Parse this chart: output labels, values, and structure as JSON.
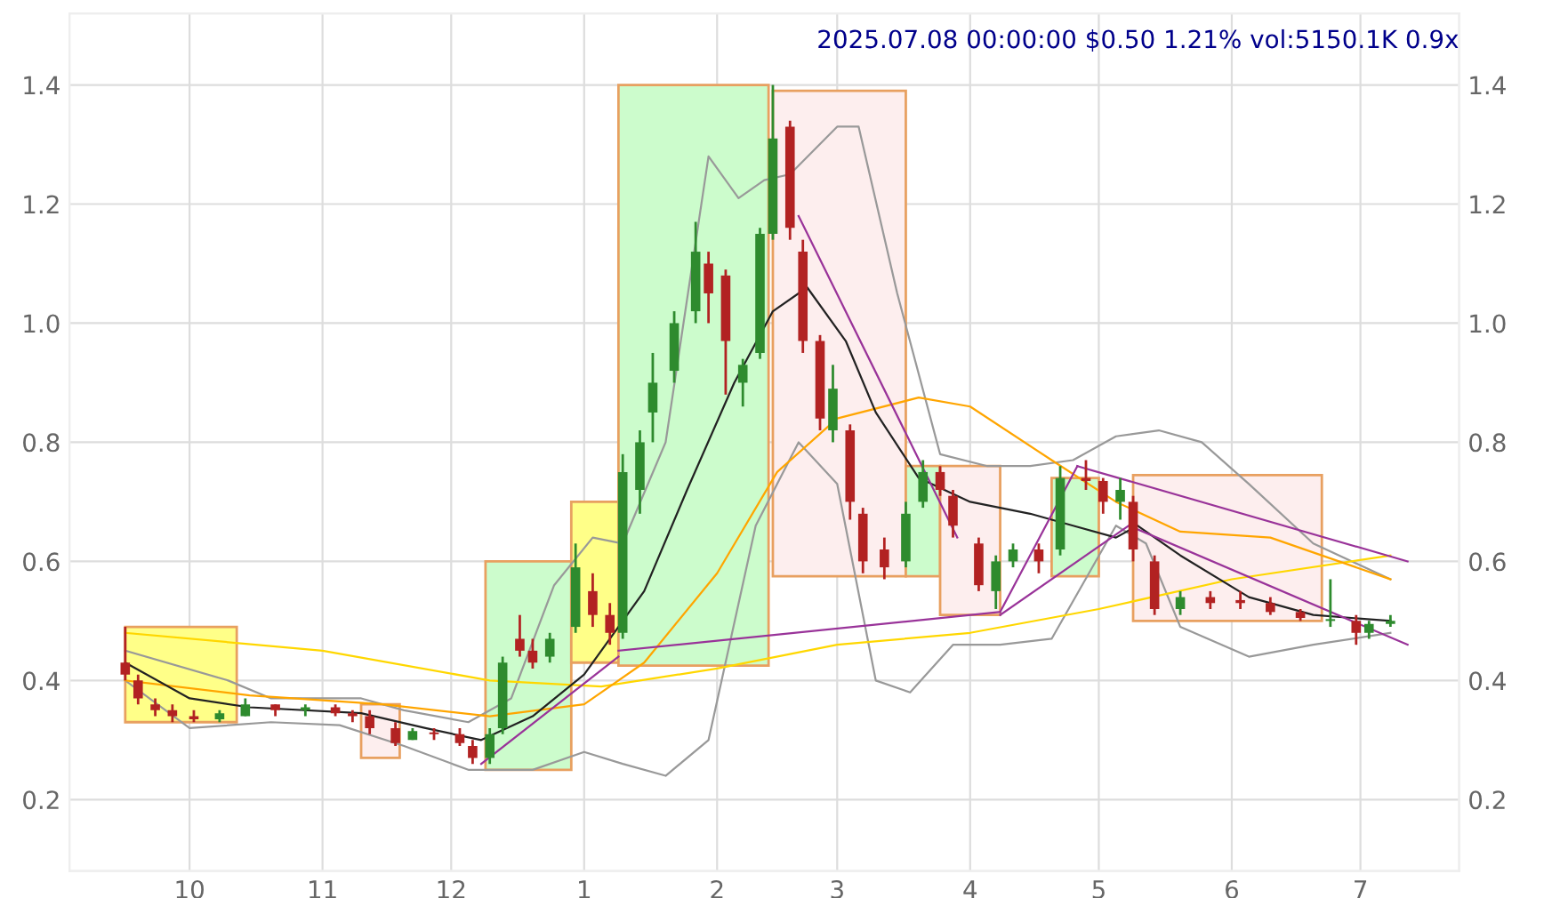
{
  "chart_data": {
    "type": "candlestick",
    "title": "2025.07.08 00:00:00 $0.50 1.21% vol:5150.1K 0.9x",
    "xlim": [
      "2024-09-03",
      "2025-07-24"
    ],
    "ylim": [
      0.08,
      1.52
    ],
    "y2lim": [
      0.08,
      1.52
    ],
    "xticks": [
      {
        "value": "2024-10-01",
        "label": "10"
      },
      {
        "value": "2024-11-01",
        "label": "11"
      },
      {
        "value": "2024-12-01",
        "label": "12"
      },
      {
        "value": "2025-01-01",
        "label": "1"
      },
      {
        "value": "2025-02-01",
        "label": "2"
      },
      {
        "value": "2025-03-01",
        "label": "3"
      },
      {
        "value": "2025-04-01",
        "label": "4"
      },
      {
        "value": "2025-05-01",
        "label": "5"
      },
      {
        "value": "2025-06-01",
        "label": "6"
      },
      {
        "value": "2025-07-01",
        "label": "7"
      }
    ],
    "yticks": [
      0.2,
      0.4,
      0.6,
      0.8,
      {
        "value": 1.0,
        "label": "1.0"
      },
      1.2,
      1.4
    ],
    "y2ticks": [
      0.2,
      0.4,
      0.6,
      0.8,
      {
        "value": 1.0,
        "label": "1.0"
      },
      1.2,
      1.4
    ],
    "grid": true,
    "x": [
      "2024-09-16",
      "2024-09-19",
      "2024-09-23",
      "2024-09-27",
      "2024-10-02",
      "2024-10-08",
      "2024-10-14",
      "2024-10-21",
      "2024-10-28",
      "2024-11-04",
      "2024-11-08",
      "2024-11-12",
      "2024-11-18",
      "2024-11-22",
      "2024-11-27",
      "2024-12-03",
      "2024-12-06",
      "2024-12-10",
      "2024-12-13",
      "2024-12-17",
      "2024-12-20",
      "2024-12-24",
      "2024-12-30",
      "2025-01-03",
      "2025-01-07",
      "2025-01-10",
      "2025-01-14",
      "2025-01-17",
      "2025-01-22",
      "2025-01-27",
      "2025-01-30",
      "2025-02-03",
      "2025-02-07",
      "2025-02-11",
      "2025-02-14",
      "2025-02-18",
      "2025-02-21",
      "2025-02-25",
      "2025-02-28",
      "2025-03-04",
      "2025-03-07",
      "2025-03-12",
      "2025-03-17",
      "2025-03-21",
      "2025-03-25",
      "2025-03-28",
      "2025-04-03",
      "2025-04-07",
      "2025-04-11",
      "2025-04-17",
      "2025-04-22",
      "2025-04-28",
      "2025-05-02",
      "2025-05-06",
      "2025-05-09",
      "2025-05-14",
      "2025-05-20",
      "2025-05-27",
      "2025-06-03",
      "2025-06-10",
      "2025-06-17",
      "2025-06-24",
      "2025-06-30",
      "2025-07-03",
      "2025-07-08"
    ],
    "ohlc": [
      [
        0.43,
        0.49,
        0.4,
        0.41
      ],
      [
        0.4,
        0.41,
        0.36,
        0.37
      ],
      [
        0.36,
        0.37,
        0.34,
        0.35
      ],
      [
        0.35,
        0.36,
        0.33,
        0.34
      ],
      [
        0.34,
        0.35,
        0.33,
        0.335
      ],
      [
        0.335,
        0.35,
        0.33,
        0.345
      ],
      [
        0.34,
        0.37,
        0.34,
        0.36
      ],
      [
        0.36,
        0.36,
        0.34,
        0.35
      ],
      [
        0.35,
        0.36,
        0.34,
        0.355
      ],
      [
        0.355,
        0.36,
        0.34,
        0.345
      ],
      [
        0.345,
        0.35,
        0.33,
        0.34
      ],
      [
        0.34,
        0.35,
        0.31,
        0.32
      ],
      [
        0.32,
        0.33,
        0.29,
        0.295
      ],
      [
        0.3,
        0.32,
        0.3,
        0.315
      ],
      [
        0.31,
        0.32,
        0.3,
        0.31
      ],
      [
        0.31,
        0.32,
        0.29,
        0.295
      ],
      [
        0.29,
        0.3,
        0.26,
        0.27
      ],
      [
        0.27,
        0.32,
        0.26,
        0.31
      ],
      [
        0.32,
        0.44,
        0.31,
        0.43
      ],
      [
        0.47,
        0.51,
        0.44,
        0.45
      ],
      [
        0.45,
        0.47,
        0.42,
        0.43
      ],
      [
        0.44,
        0.48,
        0.43,
        0.47
      ],
      [
        0.49,
        0.63,
        0.48,
        0.59
      ],
      [
        0.55,
        0.58,
        0.49,
        0.51
      ],
      [
        0.51,
        0.53,
        0.46,
        0.48
      ],
      [
        0.48,
        0.78,
        0.47,
        0.75
      ],
      [
        0.72,
        0.82,
        0.68,
        0.8
      ],
      [
        0.85,
        0.95,
        0.8,
        0.9
      ],
      [
        0.92,
        1.02,
        0.9,
        1.0
      ],
      [
        1.02,
        1.17,
        1.0,
        1.12
      ],
      [
        1.1,
        1.12,
        1.0,
        1.05
      ],
      [
        1.08,
        1.09,
        0.88,
        0.97
      ],
      [
        0.9,
        0.94,
        0.86,
        0.93
      ],
      [
        0.95,
        1.16,
        0.94,
        1.15
      ],
      [
        1.15,
        1.4,
        1.14,
        1.31
      ],
      [
        1.33,
        1.34,
        1.14,
        1.16
      ],
      [
        1.12,
        1.14,
        0.95,
        0.97
      ],
      [
        0.97,
        0.98,
        0.82,
        0.84
      ],
      [
        0.82,
        0.93,
        0.8,
        0.89
      ],
      [
        0.82,
        0.83,
        0.67,
        0.7
      ],
      [
        0.68,
        0.69,
        0.58,
        0.6
      ],
      [
        0.62,
        0.64,
        0.57,
        0.59
      ],
      [
        0.6,
        0.7,
        0.59,
        0.68
      ],
      [
        0.7,
        0.77,
        0.69,
        0.75
      ],
      [
        0.75,
        0.76,
        0.71,
        0.72
      ],
      [
        0.71,
        0.72,
        0.64,
        0.66
      ],
      [
        0.63,
        0.64,
        0.55,
        0.56
      ],
      [
        0.55,
        0.61,
        0.52,
        0.6
      ],
      [
        0.6,
        0.63,
        0.59,
        0.62
      ],
      [
        0.62,
        0.63,
        0.58,
        0.6
      ],
      [
        0.62,
        0.76,
        0.61,
        0.74
      ],
      [
        0.74,
        0.77,
        0.72,
        0.735
      ],
      [
        0.735,
        0.74,
        0.68,
        0.7
      ],
      [
        0.7,
        0.74,
        0.67,
        0.72
      ],
      [
        0.7,
        0.71,
        0.6,
        0.62
      ],
      [
        0.6,
        0.61,
        0.51,
        0.52
      ],
      [
        0.52,
        0.55,
        0.51,
        0.54
      ],
      [
        0.54,
        0.55,
        0.52,
        0.53
      ],
      [
        0.535,
        0.55,
        0.52,
        0.53
      ],
      [
        0.53,
        0.54,
        0.51,
        0.515
      ],
      [
        0.515,
        0.52,
        0.5,
        0.505
      ],
      [
        0.5,
        0.57,
        0.49,
        0.5
      ],
      [
        0.5,
        0.51,
        0.46,
        0.48
      ],
      [
        0.48,
        0.5,
        0.47,
        0.495
      ],
      [
        0.495,
        0.51,
        0.49,
        0.5
      ]
    ],
    "colors": [
      "#b22222",
      "#b22222",
      "#b22222",
      "#b22222",
      "#b22222",
      "#2e8b2e",
      "#2e8b2e",
      "#b22222",
      "#2e8b2e",
      "#b22222",
      "#b22222",
      "#b22222",
      "#b22222",
      "#2e8b2e",
      "#b22222",
      "#b22222",
      "#b22222",
      "#2e8b2e",
      "#2e8b2e",
      "#b22222",
      "#b22222",
      "#2e8b2e",
      "#2e8b2e",
      "#b22222",
      "#b22222",
      "#2e8b2e",
      "#2e8b2e",
      "#2e8b2e",
      "#2e8b2e",
      "#2e8b2e",
      "#b22222",
      "#b22222",
      "#2e8b2e",
      "#2e8b2e",
      "#2e8b2e",
      "#b22222",
      "#b22222",
      "#b22222",
      "#2e8b2e",
      "#b22222",
      "#b22222",
      "#b22222",
      "#2e8b2e",
      "#2e8b2e",
      "#b22222",
      "#b22222",
      "#b22222",
      "#2e8b2e",
      "#2e8b2e",
      "#b22222",
      "#2e8b2e",
      "#b22222",
      "#b22222",
      "#2e8b2e",
      "#b22222",
      "#b22222",
      "#2e8b2e",
      "#b22222",
      "#b22222",
      "#b22222",
      "#b22222",
      "#2e8b2e",
      "#b22222",
      "#2e8b2e",
      "#2e8b2e"
    ],
    "series": [
      {
        "type": "area",
        "color": "#ffff88",
        "x": [
          "2024-09-16",
          "2024-09-16",
          "2024-10-12",
          "2024-10-12",
          "2024-09-16"
        ],
        "values": [
          0.33,
          0.49,
          0.49,
          0.33,
          0.33
        ]
      },
      {
        "type": "area",
        "color": "#fdeeee",
        "x": [
          "2024-11-10",
          "2024-11-10",
          "2024-11-19",
          "2024-11-19",
          "2024-11-10"
        ],
        "values": [
          0.27,
          0.36,
          0.36,
          0.27,
          0.27
        ]
      },
      {
        "type": "area",
        "color": "#ccfccc",
        "x": [
          "2024-12-09",
          "2024-12-09",
          "2024-12-29",
          "2024-12-29",
          "2024-12-09"
        ],
        "values": [
          0.25,
          0.6,
          0.6,
          0.25,
          0.25
        ]
      },
      {
        "type": "area",
        "color": "#ffff88",
        "x": [
          "2024-12-29",
          "2024-12-29",
          "2025-01-09",
          "2025-01-09",
          "2024-12-29"
        ],
        "values": [
          0.43,
          0.7,
          0.7,
          0.43,
          0.43
        ]
      },
      {
        "type": "area",
        "color": "#ccfccc",
        "x": [
          "2025-01-09",
          "2025-01-09",
          "2025-02-13",
          "2025-02-13",
          "2025-01-09"
        ],
        "values": [
          0.425,
          1.4,
          1.4,
          0.425,
          0.425
        ]
      },
      {
        "type": "area",
        "color": "#fdeeee",
        "x": [
          "2025-02-14",
          "2025-02-14",
          "2025-03-17",
          "2025-03-17",
          "2025-02-14"
        ],
        "values": [
          0.575,
          1.39,
          1.39,
          0.575,
          0.575
        ]
      },
      {
        "type": "area",
        "color": "#ccfccc",
        "x": [
          "2025-03-17",
          "2025-03-17",
          "2025-03-25",
          "2025-03-25",
          "2025-03-17"
        ],
        "values": [
          0.575,
          0.76,
          0.76,
          0.575,
          0.575
        ]
      },
      {
        "type": "area",
        "color": "#fdeeee",
        "x": [
          "2025-03-25",
          "2025-03-25",
          "2025-04-08",
          "2025-04-08",
          "2025-03-25"
        ],
        "values": [
          0.51,
          0.76,
          0.76,
          0.51,
          0.51
        ]
      },
      {
        "type": "area",
        "color": "#ccfccc",
        "x": [
          "2025-04-20",
          "2025-04-20",
          "2025-05-01",
          "2025-05-01",
          "2025-04-20"
        ],
        "values": [
          0.575,
          0.74,
          0.74,
          0.575,
          0.575
        ]
      },
      {
        "type": "area",
        "color": "#fdeeee",
        "x": [
          "2025-05-09",
          "2025-05-09",
          "2025-06-22",
          "2025-06-22",
          "2025-05-09"
        ],
        "values": [
          0.5,
          0.745,
          0.745,
          0.5,
          0.5
        ]
      },
      {
        "type": "line",
        "color": "#999999",
        "x": [
          "2024-09-16",
          "2024-10-10",
          "2024-10-20",
          "2024-11-10",
          "2024-11-20",
          "2024-12-05",
          "2024-12-15",
          "2024-12-25",
          "2025-01-03",
          "2025-01-10",
          "2025-01-20",
          "2025-01-30",
          "2025-02-06",
          "2025-02-12",
          "2025-02-18",
          "2025-03-01",
          "2025-03-06",
          "2025-03-15",
          "2025-03-25",
          "2025-04-05",
          "2025-04-15",
          "2025-04-25",
          "2025-05-05",
          "2025-05-15",
          "2025-05-25",
          "2025-06-05",
          "2025-06-20",
          "2025-07-08"
        ],
        "values": [
          0.45,
          0.4,
          0.37,
          0.37,
          0.35,
          0.33,
          0.37,
          0.56,
          0.64,
          0.63,
          0.8,
          1.28,
          1.21,
          1.24,
          1.25,
          1.33,
          1.33,
          1.05,
          0.78,
          0.76,
          0.76,
          0.77,
          0.81,
          0.82,
          0.8,
          0.73,
          0.63,
          0.57
        ]
      },
      {
        "type": "line",
        "color": "#999999",
        "x": [
          "2024-09-16",
          "2024-10-01",
          "2024-10-20",
          "2024-11-05",
          "2024-11-20",
          "2024-12-05",
          "2024-12-20",
          "2025-01-01",
          "2025-01-10",
          "2025-01-20",
          "2025-01-30",
          "2025-02-10",
          "2025-02-20",
          "2025-03-01",
          "2025-03-10",
          "2025-03-18",
          "2025-03-28",
          "2025-04-08",
          "2025-04-20",
          "2025-05-05",
          "2025-05-12",
          "2025-05-20",
          "2025-06-05",
          "2025-06-20",
          "2025-07-08"
        ],
        "values": [
          0.4,
          0.32,
          0.33,
          0.325,
          0.29,
          0.25,
          0.25,
          0.28,
          0.26,
          0.24,
          0.3,
          0.66,
          0.8,
          0.73,
          0.4,
          0.38,
          0.46,
          0.46,
          0.47,
          0.66,
          0.63,
          0.49,
          0.44,
          0.46,
          0.48
        ]
      },
      {
        "type": "line",
        "color": "#ffd700",
        "x": [
          "2024-09-16",
          "2024-11-01",
          "2024-12-10",
          "2025-01-05",
          "2025-02-01",
          "2025-03-01",
          "2025-04-01",
          "2025-05-01",
          "2025-06-01",
          "2025-07-08"
        ],
        "values": [
          0.48,
          0.45,
          0.4,
          0.39,
          0.42,
          0.46,
          0.48,
          0.52,
          0.57,
          0.61
        ]
      },
      {
        "type": "line",
        "color": "#ffa500",
        "x": [
          "2024-09-16",
          "2024-10-15",
          "2024-11-15",
          "2024-12-10",
          "2025-01-01",
          "2025-01-15",
          "2025-02-01",
          "2025-02-15",
          "2025-03-01",
          "2025-03-20",
          "2025-04-01",
          "2025-04-20",
          "2025-05-05",
          "2025-05-20",
          "2025-06-10",
          "2025-07-08"
        ],
        "values": [
          0.4,
          0.375,
          0.36,
          0.34,
          0.36,
          0.43,
          0.58,
          0.75,
          0.84,
          0.875,
          0.86,
          0.77,
          0.7,
          0.65,
          0.64,
          0.57
        ]
      },
      {
        "type": "line",
        "color": "#222222",
        "x": [
          "2024-09-16",
          "2024-10-01",
          "2024-10-15",
          "2024-11-10",
          "2024-11-25",
          "2024-12-08",
          "2024-12-20",
          "2025-01-01",
          "2025-01-15",
          "2025-01-25",
          "2025-02-05",
          "2025-02-14",
          "2025-02-22",
          "2025-03-03",
          "2025-03-10",
          "2025-03-20",
          "2025-04-01",
          "2025-04-15",
          "2025-04-25",
          "2025-05-05",
          "2025-05-10",
          "2025-05-20",
          "2025-06-05",
          "2025-06-20",
          "2025-07-08"
        ],
        "values": [
          0.43,
          0.37,
          0.355,
          0.345,
          0.32,
          0.3,
          0.34,
          0.41,
          0.55,
          0.72,
          0.9,
          1.02,
          1.06,
          0.97,
          0.85,
          0.74,
          0.7,
          0.68,
          0.66,
          0.64,
          0.66,
          0.61,
          0.54,
          0.51,
          0.5
        ]
      },
      {
        "type": "line",
        "color": "#993399",
        "x": [
          "2024-12-08",
          "2025-01-09"
        ],
        "values": [
          0.26,
          0.44
        ]
      },
      {
        "type": "line",
        "color": "#993399",
        "x": [
          "2025-01-09",
          "2025-04-08"
        ],
        "values": [
          0.45,
          0.515
        ]
      },
      {
        "type": "line",
        "color": "#993399",
        "x": [
          "2025-02-20",
          "2025-03-29"
        ],
        "values": [
          1.18,
          0.64
        ]
      },
      {
        "type": "line",
        "color": "#993399",
        "x": [
          "2025-04-08",
          "2025-04-26"
        ],
        "values": [
          0.515,
          0.76
        ]
      },
      {
        "type": "line",
        "color": "#993399",
        "x": [
          "2025-04-26",
          "2025-07-12"
        ],
        "values": [
          0.76,
          0.6
        ]
      },
      {
        "type": "line",
        "color": "#993399",
        "x": [
          "2025-04-08",
          "2025-05-08",
          "2025-07-12"
        ],
        "values": [
          0.51,
          0.66,
          0.46
        ]
      }
    ]
  }
}
